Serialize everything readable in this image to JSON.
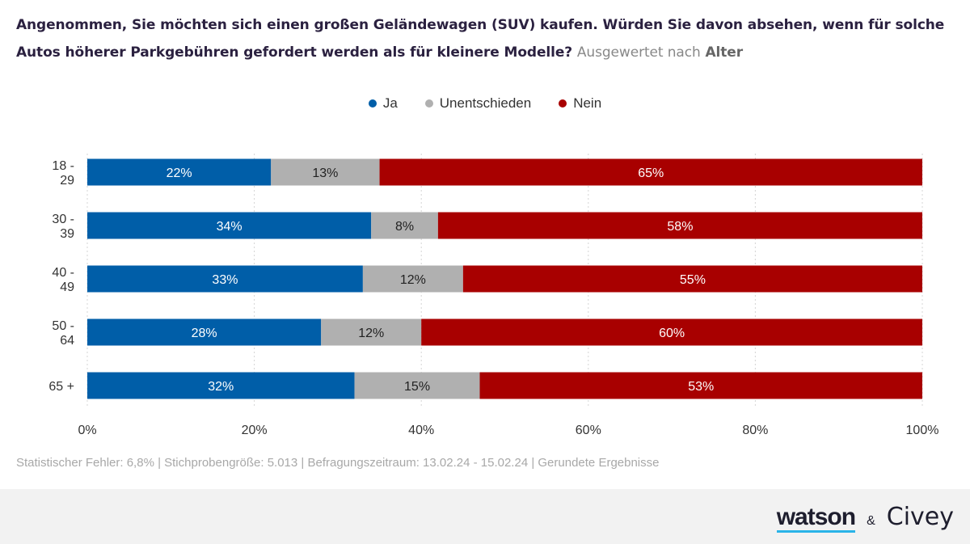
{
  "title": {
    "main": "Angenommen, Sie möchten sich einen großen Geländewagen (SUV) kaufen. Würden Sie davon absehen, wenn für solche Autos höherer Parkgebühren gefordert werden als für kleinere Modelle?",
    "sub": "Ausgewertet nach",
    "sub_bold": "Alter"
  },
  "colors": {
    "ja": "#005ea8",
    "unentschieden": "#b0b0b0",
    "nein": "#a80000"
  },
  "chart_data": {
    "type": "bar",
    "orientation": "horizontal",
    "stacked": true,
    "categories": [
      [
        "18 -",
        "29"
      ],
      [
        "30 -",
        "39"
      ],
      [
        "40 -",
        "49"
      ],
      [
        "50 -",
        "64"
      ],
      [
        "65 +"
      ]
    ],
    "series": [
      {
        "name": "Ja",
        "color": "#005ea8",
        "values": [
          22,
          34,
          33,
          28,
          32
        ]
      },
      {
        "name": "Unentschieden",
        "color": "#b0b0b0",
        "values": [
          13,
          8,
          12,
          12,
          15
        ]
      },
      {
        "name": "Nein",
        "color": "#a80000",
        "values": [
          65,
          58,
          55,
          60,
          53
        ]
      }
    ],
    "xlim": [
      0,
      100
    ],
    "xticks": [
      "0%",
      "20%",
      "40%",
      "60%",
      "80%",
      "100%"
    ],
    "tick_values": [
      0,
      20,
      40,
      60,
      80,
      100
    ],
    "legend_position": "top-center",
    "grid": true
  },
  "footnote": "Statistischer Fehler: 6,8% | Stichprobengröße: 5.013 | Befragungszeitraum: 13.02.24 - 15.02.24 | Gerundete Ergebnisse",
  "brand": {
    "watson": "watson",
    "amp": "&",
    "civey": "Civey"
  }
}
